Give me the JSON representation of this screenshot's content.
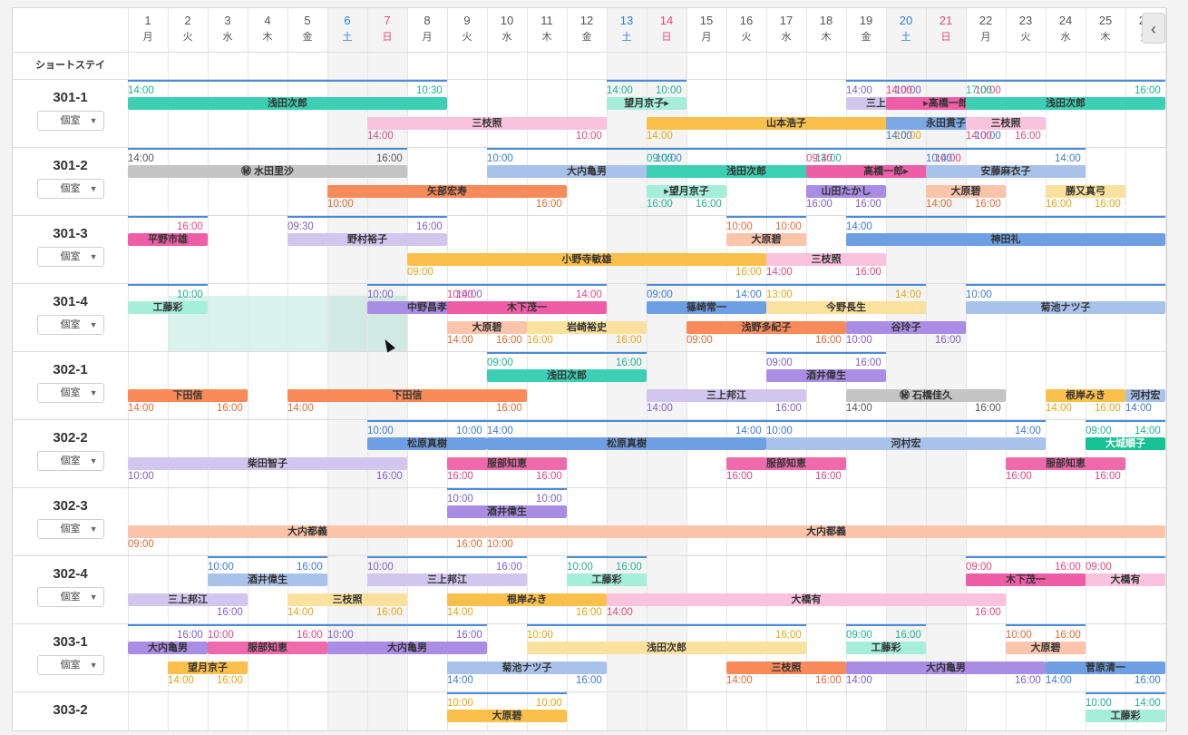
{
  "days": [
    {
      "n": "1",
      "w": "月"
    },
    {
      "n": "2",
      "w": "火"
    },
    {
      "n": "3",
      "w": "水"
    },
    {
      "n": "4",
      "w": "木"
    },
    {
      "n": "5",
      "w": "金"
    },
    {
      "n": "6",
      "w": "土"
    },
    {
      "n": "7",
      "w": "日"
    },
    {
      "n": "8",
      "w": "月"
    },
    {
      "n": "9",
      "w": "火"
    },
    {
      "n": "10",
      "w": "水"
    },
    {
      "n": "11",
      "w": "木"
    },
    {
      "n": "12",
      "w": "金"
    },
    {
      "n": "13",
      "w": "土"
    },
    {
      "n": "14",
      "w": "日"
    },
    {
      "n": "15",
      "w": "月"
    },
    {
      "n": "16",
      "w": "火"
    },
    {
      "n": "17",
      "w": "水"
    },
    {
      "n": "18",
      "w": "木"
    },
    {
      "n": "19",
      "w": "金"
    },
    {
      "n": "20",
      "w": "土"
    },
    {
      "n": "21",
      "w": "日"
    },
    {
      "n": "22",
      "w": "月"
    },
    {
      "n": "23",
      "w": "火"
    },
    {
      "n": "24",
      "w": "水"
    },
    {
      "n": "25",
      "w": "木"
    },
    {
      "n": "26",
      "w": "金"
    }
  ],
  "group_label": "ショートステイ",
  "room_type": "個室",
  "rooms": [
    {
      "name": "301-1",
      "lanes": [
        [
          {
            "s": 1,
            "e": 8,
            "t": "浅田次郎",
            "c": "#3dcfb3",
            "tl": "14:00",
            "tr": "10:30"
          },
          {
            "s": 13,
            "e": 14,
            "t": "望月京子▸",
            "c": "#a5eed8",
            "tl": "14:00",
            "tr": "10:00"
          },
          {
            "s": 19,
            "e": 20,
            "t": "三上邦江",
            "c": "#d0c6ee",
            "tl": "14:00",
            "tr": "10:00"
          },
          {
            "s": 20,
            "e": 22,
            "t": "▸高橋一郎",
            "c": "#ee5ea6",
            "tl": "14:00",
            "tr": "10:00"
          },
          {
            "s": 22,
            "e": 26,
            "t": "浅田次郎",
            "c": "#3dcfb3",
            "tl": "17:00",
            "tr": "16:00"
          }
        ],
        [
          {
            "s": 7,
            "e": 12,
            "t": "三枝照",
            "c": "#f9c2dd",
            "bl": "14:00",
            "br": "10:00"
          },
          {
            "s": 14,
            "e": 20,
            "t": "山本浩子",
            "c": "#fbbf4b",
            "bl": "14:00",
            "br": "10:00"
          },
          {
            "s": 20,
            "e": 22,
            "t": "永田貫子",
            "c": "#7ca8e6",
            "bl": "14:00",
            "br": "10:00"
          },
          {
            "s": 22,
            "e": 23,
            "t": "三枝照",
            "c": "#f9c2dd",
            "bl": "14:00",
            "br": "16:00"
          }
        ]
      ]
    },
    {
      "name": "301-2",
      "lanes": [
        [
          {
            "s": 1,
            "e": 7,
            "t": "㊙ 水田里沙",
            "c": "#c4c4c4",
            "tl": "14:00",
            "tr": "16:00"
          },
          {
            "s": 10,
            "e": 14,
            "t": "大内亀男",
            "c": "#a9c2ea",
            "tl": "10:00",
            "tr": "10:00"
          },
          {
            "s": 14,
            "e": 18,
            "t": "浅田次郎",
            "c": "#3dcfb3",
            "tl": "09:00",
            "tr": "14:00"
          },
          {
            "s": 18,
            "e": 21,
            "t": "高橋一郎▸",
            "c": "#ee5ea6",
            "tl": "09:30",
            "tr": "14:00"
          },
          {
            "s": 21,
            "e": 24,
            "t": "安藤麻衣子",
            "c": "#a9c2ea",
            "tl": "10:00",
            "tr": "14:00"
          }
        ],
        [
          {
            "s": 6,
            "e": 11,
            "t": "矢部宏寿",
            "c": "#f98a5a",
            "bl": "10:00",
            "br": "16:00"
          },
          {
            "s": 14,
            "e": 15,
            "t": "▸望月京子",
            "c": "#a5eed8",
            "bl": "16:00",
            "br": "16:00"
          },
          {
            "s": 18,
            "e": 19,
            "t": "山田たかし",
            "c": "#a98ce3",
            "bl": "16:00",
            "br": "16:00"
          },
          {
            "s": 21,
            "e": 22,
            "t": "大原碧",
            "c": "#fbc4ab",
            "bl": "14:00",
            "br": "16:00"
          },
          {
            "s": 24,
            "e": 25,
            "t": "勝又真弓",
            "c": "#fbe19e",
            "bl": "16:00",
            "br": "16:00"
          }
        ]
      ]
    },
    {
      "name": "301-3",
      "lanes": [
        [
          {
            "s": 1,
            "e": 2,
            "t": "平野市雄",
            "c": "#ee5ea6",
            "tr": "16:00"
          },
          {
            "s": 5,
            "e": 8,
            "t": "野村裕子",
            "c": "#d0c6ee",
            "tl": "09:30",
            "tr": "16:00"
          },
          {
            "s": 16,
            "e": 17,
            "t": "大原碧",
            "c": "#fbc4ab",
            "tl": "10:00",
            "tr": "10:00"
          },
          {
            "s": 19,
            "e": 26,
            "t": "神田礼",
            "c": "#6e9fe3",
            "tl": "14:00"
          }
        ],
        [
          {
            "s": 8,
            "e": 16,
            "t": "小野寺敏雄",
            "c": "#fbbf4b",
            "bl": "09:00",
            "br": "16:00"
          },
          {
            "s": 17,
            "e": 19,
            "t": "三枝照",
            "c": "#f9c2dd",
            "bl": "14:00",
            "br": "16:00"
          }
        ]
      ]
    },
    {
      "name": "301-4",
      "lanes": [
        [
          {
            "s": 1,
            "e": 2,
            "t": "工藤彩",
            "c": "#a5eed8",
            "tr": "10:00"
          },
          {
            "s": 7,
            "e": 9,
            "t": "中野昌孝",
            "c": "#a98ce3",
            "tl": "10:00",
            "tr": "14:00"
          },
          {
            "s": 9,
            "e": 12,
            "t": "木下茂一",
            "c": "#ee5ea6",
            "tl": "10:00",
            "tr": "14:00"
          },
          {
            "s": 14,
            "e": 16,
            "t": "篠崎常一",
            "c": "#6e9fe3",
            "tl": "09:00",
            "tr": "14:00"
          },
          {
            "s": 17,
            "e": 20,
            "t": "今野長生",
            "c": "#fbe19e",
            "tl": "13:00",
            "tr": "14:00"
          },
          {
            "s": 22,
            "e": 26,
            "t": "菊池ナツ子",
            "c": "#a9c2ea",
            "tl": "10:00"
          }
        ],
        [
          {
            "s": 9,
            "e": 10,
            "t": "大原碧",
            "c": "#fbc4ab",
            "bl": "14:00",
            "br": "16:00"
          },
          {
            "s": 11,
            "e": 13,
            "t": "岩崎裕史",
            "c": "#fbe19e",
            "bl": "16:00",
            "br": "16:00"
          },
          {
            "s": 15,
            "e": 18,
            "t": "浅野多紀子",
            "c": "#f98a5a",
            "bl": "09:00",
            "br": "16:00"
          },
          {
            "s": 19,
            "e": 21,
            "t": "谷玲子",
            "c": "#a98ce3",
            "bl": "10:00",
            "br": "16:00"
          }
        ]
      ]
    },
    {
      "name": "302-1",
      "lanes": [
        [
          {
            "s": 10,
            "e": 13,
            "t": "浅田次郎",
            "c": "#3dcfb3",
            "tl": "09:00",
            "tr": "16:00"
          },
          {
            "s": 17,
            "e": 19,
            "t": "酒井偉生",
            "c": "#a98ce3",
            "tl": "09:00",
            "tr": "16:00"
          }
        ],
        [
          {
            "s": 1,
            "e": 3,
            "t": "下田信",
            "c": "#f98a5a",
            "bl": "14:00",
            "br": "16:00"
          },
          {
            "s": 5,
            "e": 10,
            "t": "下田信",
            "c": "#f98a5a",
            "bl": "14:00",
            "br": "16:00"
          },
          {
            "s": 14,
            "e": 17,
            "t": "三上邦江",
            "c": "#d0c6ee",
            "bl": "14:00",
            "br": "16:00"
          },
          {
            "s": 19,
            "e": 22,
            "t": "㊙ 石橋佳久",
            "c": "#c4c4c4",
            "bl": "14:00",
            "br": "16:00"
          },
          {
            "s": 24,
            "e": 25,
            "t": "根岸みき",
            "c": "#fbbf4b",
            "bl": "14:00",
            "br": "16:00"
          },
          {
            "s": 26,
            "e": 26,
            "t": "河村宏",
            "c": "#a9c2ea",
            "bl": "14:00"
          }
        ]
      ]
    },
    {
      "name": "302-2",
      "lanes": [
        [
          {
            "s": 7,
            "e": 9,
            "t": "松原真樹",
            "c": "#6e9fe3",
            "tl": "10:00",
            "tr": "10:00"
          },
          {
            "s": 10,
            "e": 16,
            "t": "松原真樹",
            "c": "#6e9fe3",
            "tl": "14:00",
            "tr": "14:00"
          },
          {
            "s": 17,
            "e": 23,
            "t": "河村宏",
            "c": "#a9c2ea",
            "tl": "10:00",
            "tr": "14:00"
          },
          {
            "s": 25,
            "e": 26,
            "t": "大城順子",
            "c": "#15c293",
            "tl": "09:00",
            "tr": "14:00"
          }
        ],
        [
          {
            "s": 1,
            "e": 7,
            "t": "柴田智子",
            "c": "#d0c6ee",
            "bl": "10:00",
            "br": "16:00"
          },
          {
            "s": 9,
            "e": 11,
            "t": "服部知恵",
            "c": "#ee6aaa",
            "bl": "16:00",
            "br": "16:00"
          },
          {
            "s": 16,
            "e": 18,
            "t": "服部知恵",
            "c": "#ee6aaa",
            "bl": "16:00",
            "br": "16:00"
          },
          {
            "s": 23,
            "e": 25,
            "t": "服部知恵",
            "c": "#ee6aaa",
            "bl": "16:00",
            "br": "16:00"
          }
        ]
      ]
    },
    {
      "name": "302-3",
      "lanes": [
        [
          {
            "s": 9,
            "e": 11,
            "t": "酒井偉生",
            "c": "#a98ce3",
            "tl": "10:00",
            "tr": "10:00"
          }
        ],
        [
          {
            "s": 1,
            "e": 9,
            "t": "大内都義",
            "c": "#fbc4ab",
            "bl": "09:00",
            "br": "16:00"
          },
          {
            "s": 10,
            "e": 26,
            "t": "大内都義",
            "c": "#fbc4ab",
            "bl": "10:00"
          }
        ]
      ]
    },
    {
      "name": "302-4",
      "lanes": [
        [
          {
            "s": 3,
            "e": 5,
            "t": "酒井偉生",
            "c": "#a9c2ea",
            "tl": "10:00",
            "tr": "16:00"
          },
          {
            "s": 7,
            "e": 10,
            "t": "三上邦江",
            "c": "#d0c6ee",
            "tl": "10:00",
            "tr": "16:00"
          },
          {
            "s": 12,
            "e": 13,
            "t": "工藤彩",
            "c": "#a5eed8",
            "tl": "10:00",
            "tr": "16:00"
          },
          {
            "s": 22,
            "e": 24,
            "t": "木下茂一",
            "c": "#ee5ea6",
            "tl": "09:00",
            "tr": "16:00"
          },
          {
            "s": 25,
            "e": 26,
            "t": "大橋有",
            "c": "#f9c2dd",
            "tl": "09:00"
          }
        ],
        [
          {
            "s": 1,
            "e": 3,
            "t": "三上邦江",
            "c": "#d0c6ee",
            "br": "16:00"
          },
          {
            "s": 5,
            "e": 7,
            "t": "三枝照",
            "c": "#fbe19e",
            "bl": "14:00",
            "br": "16:00"
          },
          {
            "s": 9,
            "e": 12,
            "t": "根岸みき",
            "c": "#fbbf4b",
            "bl": "14:00",
            "br": "16:00"
          },
          {
            "s": 13,
            "e": 22,
            "t": "大橋有",
            "c": "#f9c2dd",
            "bl": "14:00",
            "br": "16:00"
          }
        ]
      ]
    },
    {
      "name": "303-1",
      "lanes": [
        [
          {
            "s": 1,
            "e": 2,
            "t": "大内亀男",
            "c": "#a98ce3",
            "tr": "16:00"
          },
          {
            "s": 3,
            "e": 5,
            "t": "服部知恵",
            "c": "#ee6aaa",
            "tl": "10:00",
            "tr": "16:00"
          },
          {
            "s": 6,
            "e": 9,
            "t": "大内亀男",
            "c": "#a98ce3",
            "tl": "10:00",
            "tr": "16:00"
          },
          {
            "s": 11,
            "e": 17,
            "t": "浅田次郎",
            "c": "#fbe19e",
            "tl": "10:00",
            "tr": "16:00"
          },
          {
            "s": 19,
            "e": 20,
            "t": "工藤彩",
            "c": "#a5eed8",
            "tl": "09:00",
            "tr": "16:00"
          },
          {
            "s": 23,
            "e": 24,
            "t": "大原碧",
            "c": "#fbc4ab",
            "tl": "10:00",
            "tr": "16:00"
          }
        ],
        [
          {
            "s": 2,
            "e": 3,
            "t": "望月京子",
            "c": "#fbbf4b",
            "bl": "14:00",
            "br": "16:00"
          },
          {
            "s": 9,
            "e": 12,
            "t": "菊池ナツ子",
            "c": "#a9c2ea",
            "bl": "14:00",
            "br": "16:00"
          },
          {
            "s": 16,
            "e": 18,
            "t": "三枝照",
            "c": "#f98a5a",
            "bl": "14:00",
            "br": "16:00"
          },
          {
            "s": 19,
            "e": 23,
            "t": "大内亀男",
            "c": "#a98ce3",
            "bl": "14:00",
            "br": "16:00"
          },
          {
            "s": 24,
            "e": 26,
            "t": "菅原清一",
            "c": "#6e9fe3",
            "bl": "14:00",
            "br": "16:00"
          }
        ]
      ]
    },
    {
      "name": "303-2",
      "lanes": [
        [
          {
            "s": 9,
            "e": 11,
            "t": "大原碧",
            "c": "#fbbf4b",
            "tl": "10:00",
            "tr": "10:00"
          },
          {
            "s": 25,
            "e": 26,
            "t": "工藤彩",
            "c": "#a5eed8",
            "tl": "10:00",
            "tr": "14:00"
          }
        ],
        []
      ]
    }
  ]
}
